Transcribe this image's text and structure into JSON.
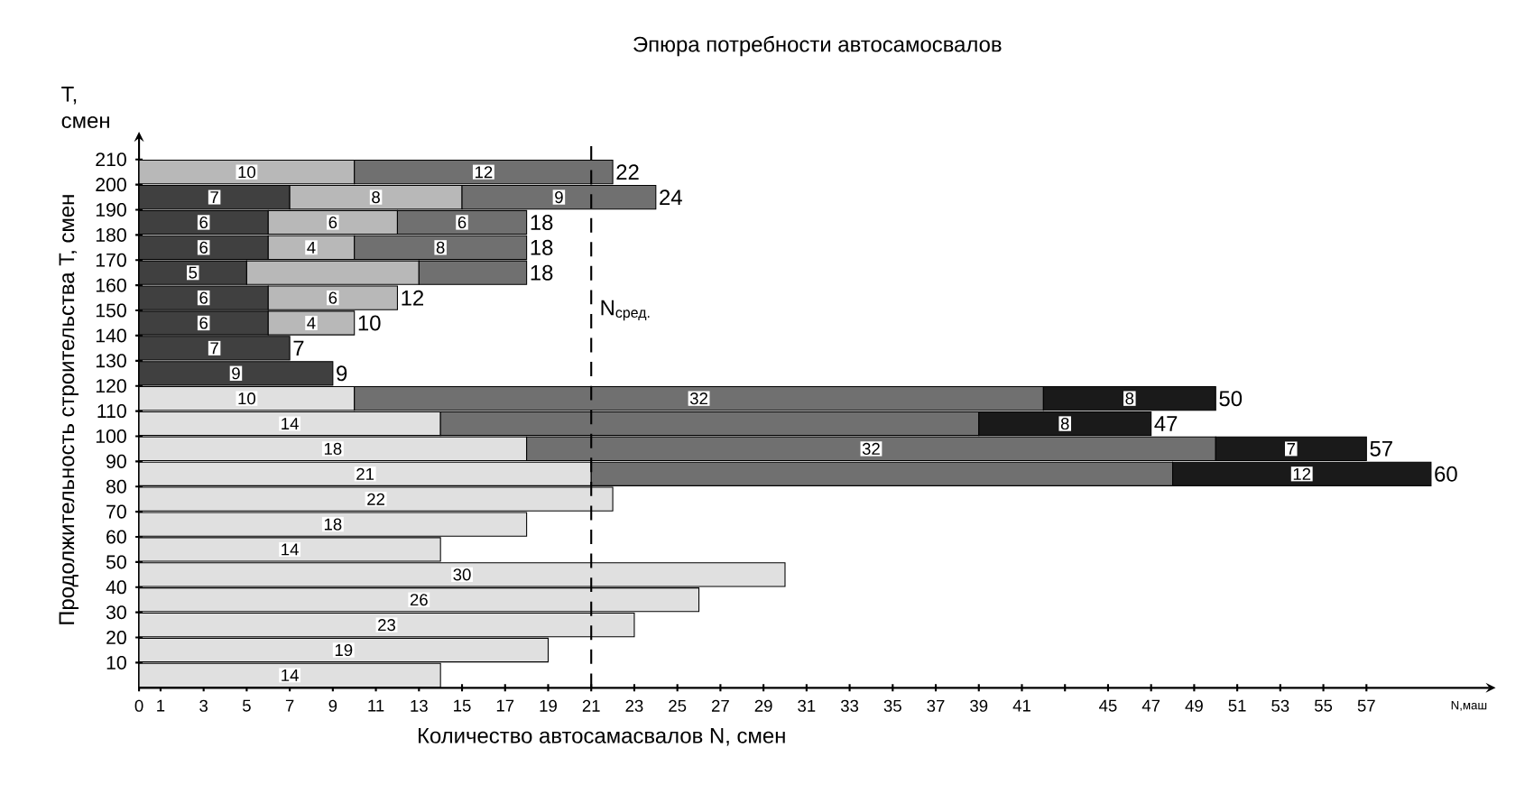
{
  "chart_data": {
    "type": "bar",
    "orientation": "horizontal",
    "stacked": true,
    "title": "Эпюра потребности автосамосвалов",
    "xlabel": "Количество автосамасвалов N, смен",
    "ylabel": "Продолжительность строительства Т, смен",
    "categories": [
      "210",
      "200",
      "190",
      "180",
      "170",
      "160",
      "150",
      "140",
      "130",
      "120",
      "110",
      "100",
      "90",
      "80",
      "70",
      "60",
      "50",
      "40",
      "30",
      "20",
      "10"
    ],
    "series": [
      {
        "color": "#e0e0e0",
        "values": [
          null,
          null,
          null,
          null,
          null,
          null,
          null,
          null,
          null,
          10,
          14,
          18,
          21,
          22,
          18,
          14,
          30,
          26,
          23,
          19,
          14
        ],
        "value_labels": [
          null,
          null,
          null,
          null,
          null,
          null,
          null,
          null,
          null,
          "10",
          "14",
          "18",
          "21",
          "22",
          "18",
          "14",
          "30",
          "26",
          "23",
          "19",
          "14"
        ]
      },
      {
        "color": "#404040",
        "values": [
          null,
          7,
          6,
          6,
          5,
          6,
          6,
          7,
          9,
          null,
          null,
          null,
          null,
          null,
          null,
          null,
          null,
          null,
          null,
          null,
          null
        ],
        "value_labels": [
          null,
          "7",
          "6",
          "6",
          "5",
          "6",
          "6",
          "7",
          "9",
          null,
          null,
          null,
          null,
          null,
          null,
          null,
          null,
          null,
          null,
          null,
          null
        ]
      },
      {
        "color": "#b8b8b8",
        "values": [
          10,
          8,
          6,
          4,
          8,
          6,
          4,
          null,
          null,
          null,
          null,
          null,
          null,
          null,
          null,
          null,
          null,
          null,
          null,
          null,
          null
        ],
        "value_labels": [
          "10",
          "8",
          "6",
          "4",
          null,
          "6",
          "4",
          null,
          null,
          null,
          null,
          null,
          null,
          null,
          null,
          null,
          null,
          null,
          null,
          null,
          null
        ]
      },
      {
        "color": "#707070",
        "values": [
          12,
          9,
          6,
          8,
          5,
          null,
          null,
          null,
          null,
          32,
          25,
          32,
          27,
          null,
          null,
          null,
          null,
          null,
          null,
          null,
          null
        ],
        "value_labels": [
          "12",
          "9",
          "6",
          "8",
          null,
          null,
          null,
          null,
          null,
          "32",
          null,
          "32",
          null,
          null,
          null,
          null,
          null,
          null,
          null,
          null,
          null
        ]
      },
      {
        "color": "#1a1a1a",
        "values": [
          null,
          null,
          null,
          null,
          null,
          null,
          null,
          null,
          null,
          8,
          8,
          7,
          12,
          null,
          null,
          null,
          null,
          null,
          null,
          null,
          null
        ],
        "value_labels": [
          null,
          null,
          null,
          null,
          null,
          null,
          null,
          null,
          null,
          "8",
          "8",
          "7",
          "12",
          null,
          null,
          null,
          null,
          null,
          null,
          null,
          null
        ]
      }
    ],
    "totals": [
      "22",
      "24",
      "18",
      "18",
      "18",
      "12",
      "10",
      "7",
      "9",
      "50",
      "47",
      "57",
      "60",
      null,
      null,
      null,
      null,
      null,
      null,
      null,
      null
    ],
    "xlim": [
      0,
      63
    ],
    "xticks": [
      0,
      1,
      3,
      5,
      7,
      9,
      11,
      13,
      15,
      17,
      19,
      21,
      23,
      25,
      27,
      29,
      31,
      33,
      35,
      37,
      39,
      41,
      {
        "value": 43,
        "label": null
      },
      45,
      47,
      49,
      51,
      53,
      55,
      57
    ],
    "ref_lines": [
      {
        "axis": "x",
        "value": 21,
        "label": "N$_{сред.}$",
        "line_style": "dashed"
      }
    ],
    "annotations": [
      "Т, смен",
      "N,маш"
    ]
  }
}
